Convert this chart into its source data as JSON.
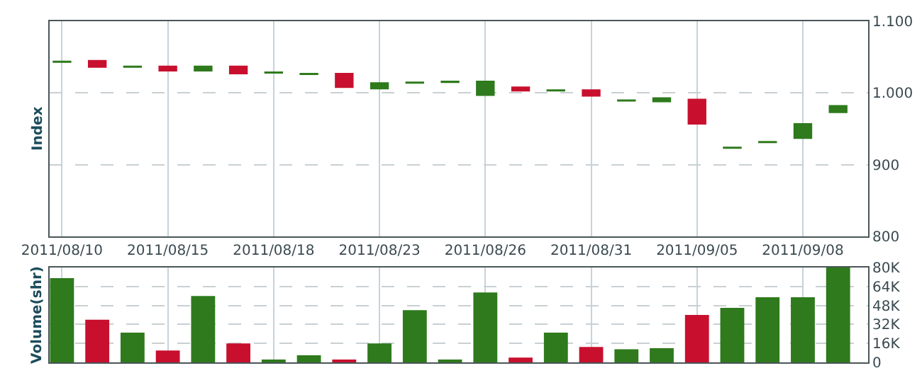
{
  "chart_data": [
    {
      "type": "candlestick",
      "ylabel": "Index",
      "categories": [
        "2011/08/10",
        null,
        null,
        "2011/08/15",
        null,
        null,
        "2011/08/18",
        null,
        null,
        "2011/08/23",
        null,
        null,
        "2011/08/26",
        null,
        null,
        "2011/08/31",
        null,
        null,
        "2011/09/05",
        null,
        null,
        "2011/09/08",
        null
      ],
      "ohlc": [
        [
          1043,
          1044,
          1043,
          1044
        ],
        [
          1045,
          1045,
          1036,
          1036
        ],
        [
          1036,
          1037,
          1036,
          1037
        ],
        [
          1037,
          1037,
          1031,
          1031
        ],
        [
          1031,
          1037,
          1031,
          1037
        ],
        [
          1037,
          1037,
          1027,
          1027
        ],
        [
          1028,
          1029,
          1028,
          1029
        ],
        [
          1026,
          1027,
          1026,
          1027
        ],
        [
          1027,
          1027,
          1008,
          1008
        ],
        [
          1006,
          1014,
          1006,
          1014
        ],
        [
          1014,
          1015,
          1014,
          1015
        ],
        [
          1015,
          1016,
          1015,
          1016
        ],
        [
          997,
          1016,
          997,
          1016
        ],
        [
          1008,
          1008,
          1003,
          1003
        ],
        [
          1003,
          1004,
          1003,
          1004
        ],
        [
          1004,
          1004,
          996,
          996
        ],
        [
          989,
          990,
          989,
          990
        ],
        [
          988,
          993,
          988,
          993
        ],
        [
          991,
          991,
          957,
          957
        ],
        [
          923,
          924,
          923,
          924
        ],
        [
          931,
          932,
          931,
          932
        ],
        [
          937,
          957,
          937,
          957
        ],
        [
          973,
          982,
          973,
          982
        ]
      ],
      "colors": [
        "#2e7a1c",
        "#c8102e",
        "#2e7a1c",
        "#c8102e",
        "#2e7a1c",
        "#c8102e",
        "#2e7a1c",
        "#2e7a1c",
        "#c8102e",
        "#2e7a1c",
        "#2e7a1c",
        "#2e7a1c",
        "#2e7a1c",
        "#c8102e",
        "#2e7a1c",
        "#c8102e",
        "#2e7a1c",
        "#2e7a1c",
        "#c8102e",
        "#2e7a1c",
        "#2e7a1c",
        "#2e7a1c",
        "#2e7a1c"
      ],
      "ylim": [
        800,
        1100
      ],
      "yticks": [
        {
          "value": 1100,
          "label": "1.100"
        },
        {
          "value": 1000,
          "label": "1.000"
        },
        900,
        800
      ],
      "grid": true
    },
    {
      "type": "bar",
      "ylabel": "Volume(shr)",
      "categories": [
        "2011/08/10",
        null,
        null,
        "2011/08/15",
        null,
        null,
        "2011/08/18",
        null,
        null,
        "2011/08/23",
        null,
        null,
        "2011/08/26",
        null,
        null,
        "2011/08/31",
        null,
        null,
        "2011/09/05",
        null,
        null,
        "2011/09/08",
        null
      ],
      "values": [
        71000,
        36000,
        25000,
        10000,
        56000,
        16000,
        2000,
        6000,
        2000,
        16000,
        44000,
        2000,
        59000,
        4000,
        25000,
        13000,
        11000,
        12000,
        40000,
        46000,
        55000,
        55000,
        80000
      ],
      "colors": [
        "#2e7a1c",
        "#c8102e",
        "#2e7a1c",
        "#c8102e",
        "#2e7a1c",
        "#c8102e",
        "#2e7a1c",
        "#2e7a1c",
        "#c8102e",
        "#2e7a1c",
        "#2e7a1c",
        "#2e7a1c",
        "#2e7a1c",
        "#c8102e",
        "#2e7a1c",
        "#c8102e",
        "#2e7a1c",
        "#2e7a1c",
        "#c8102e",
        "#2e7a1c",
        "#2e7a1c",
        "#2e7a1c",
        "#2e7a1c"
      ],
      "ylim": [
        0,
        80000
      ],
      "yticks": [
        0,
        {
          "value": 16000,
          "label": "16K"
        },
        {
          "value": 32000,
          "label": "32K"
        },
        {
          "value": 48000,
          "label": "48K"
        },
        {
          "value": 64000,
          "label": "64K"
        },
        {
          "value": 80000,
          "label": "80K"
        }
      ],
      "grid": true,
      "tick_labels": "y"
    }
  ]
}
